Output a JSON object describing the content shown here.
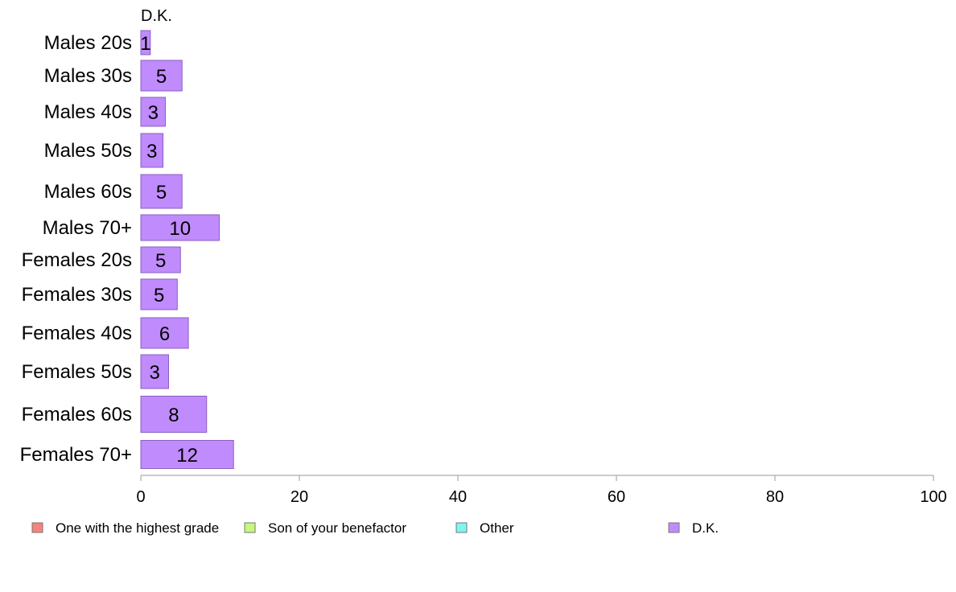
{
  "chart_data": {
    "type": "bar",
    "orientation": "horizontal",
    "stacked": true,
    "title": "",
    "xlabel": "",
    "ylabel": "",
    "xlim": [
      0,
      100
    ],
    "x_ticks": [
      0,
      20,
      40,
      60,
      80,
      100
    ],
    "grid": false,
    "legend_position": "bottom",
    "categories": [
      "Males 20s",
      "Males 30s",
      "Males 40s",
      "Males 50s",
      "Males 60s",
      "Males 70+",
      "Females 20s",
      "Females 30s",
      "Females 40s",
      "Females 50s",
      "Females 60s",
      "Females 70+"
    ],
    "series": [
      {
        "name": "One with the highest grade",
        "color": "#f8837a",
        "values": [
          0,
          0,
          0,
          0,
          0,
          0,
          0,
          0,
          0,
          0,
          0,
          0
        ]
      },
      {
        "name": "Son of your benefactor",
        "color": "#c6f77f",
        "values": [
          0,
          0,
          0,
          0,
          0,
          0,
          0,
          0,
          0,
          0,
          0,
          0
        ]
      },
      {
        "name": "Other",
        "color": "#7ff5ef",
        "values": [
          0,
          0,
          0,
          0,
          0,
          0,
          0,
          0,
          0,
          0,
          0,
          0
        ]
      },
      {
        "name": "D.K.",
        "color": "#c08bfc",
        "values": [
          1.2,
          5.2,
          3.1,
          2.8,
          5.2,
          9.9,
          5.0,
          4.6,
          6.0,
          3.5,
          8.3,
          11.7
        ]
      }
    ],
    "data_labels": [
      "1",
      "5",
      "3",
      "3",
      "5",
      "10",
      "5",
      "5",
      "6",
      "3",
      "8",
      "12"
    ],
    "top_annotation": "D.K."
  }
}
